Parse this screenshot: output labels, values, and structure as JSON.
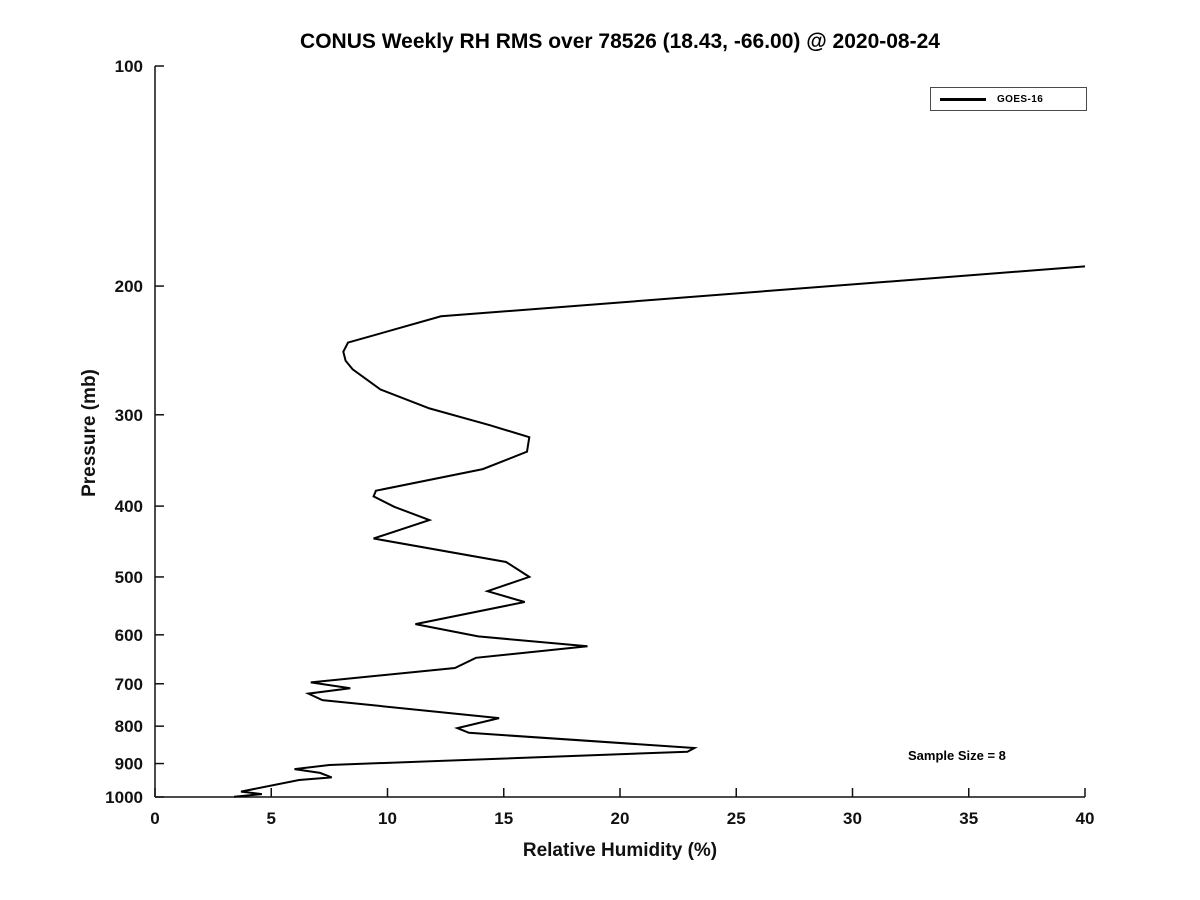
{
  "chart_data": {
    "type": "line",
    "title": "CONUS Weekly RH RMS over 78526 (18.43, -66.00) @ 2020-08-24",
    "xlabel": "Relative Humidity (%)",
    "ylabel": "Pressure (mb)",
    "xlim": [
      0,
      40
    ],
    "x_ticks": [
      0,
      5,
      10,
      15,
      20,
      25,
      30,
      35,
      40
    ],
    "ylim": [
      100,
      1000
    ],
    "y_scale": "log",
    "y_ticks": [
      100,
      200,
      300,
      400,
      500,
      600,
      700,
      800,
      900,
      1000
    ],
    "grid": false,
    "legend_position": "top-right",
    "annotation": "Sample Size = 8",
    "series": [
      {
        "name": "GOES-16",
        "color": "#000000",
        "points": [
          [
            40.0,
            188
          ],
          [
            12.3,
            220
          ],
          [
            8.3,
            239
          ],
          [
            8.1,
            246
          ],
          [
            8.2,
            253
          ],
          [
            8.5,
            260
          ],
          [
            9.7,
            277
          ],
          [
            11.8,
            294
          ],
          [
            14.4,
            310
          ],
          [
            16.1,
            322
          ],
          [
            16.0,
            337
          ],
          [
            14.1,
            356
          ],
          [
            9.5,
            381
          ],
          [
            9.4,
            388
          ],
          [
            10.3,
            401
          ],
          [
            11.8,
            418
          ],
          [
            9.4,
            443
          ],
          [
            15.1,
            477
          ],
          [
            16.1,
            500
          ],
          [
            14.3,
            523
          ],
          [
            15.9,
            541
          ],
          [
            11.2,
            580
          ],
          [
            13.9,
            603
          ],
          [
            18.6,
            622
          ],
          [
            13.8,
            645
          ],
          [
            12.9,
            666
          ],
          [
            6.7,
            697
          ],
          [
            8.4,
            710
          ],
          [
            6.6,
            722
          ],
          [
            7.2,
            737
          ],
          [
            14.8,
            780
          ],
          [
            13.0,
            805
          ],
          [
            13.5,
            817
          ],
          [
            23.2,
            857
          ],
          [
            22.9,
            867
          ],
          [
            7.5,
            904
          ],
          [
            6.0,
            916
          ],
          [
            7.1,
            927
          ],
          [
            7.6,
            940
          ],
          [
            6.2,
            948
          ],
          [
            3.7,
            983
          ],
          [
            4.6,
            991
          ],
          [
            3.4,
            999
          ]
        ]
      }
    ]
  }
}
